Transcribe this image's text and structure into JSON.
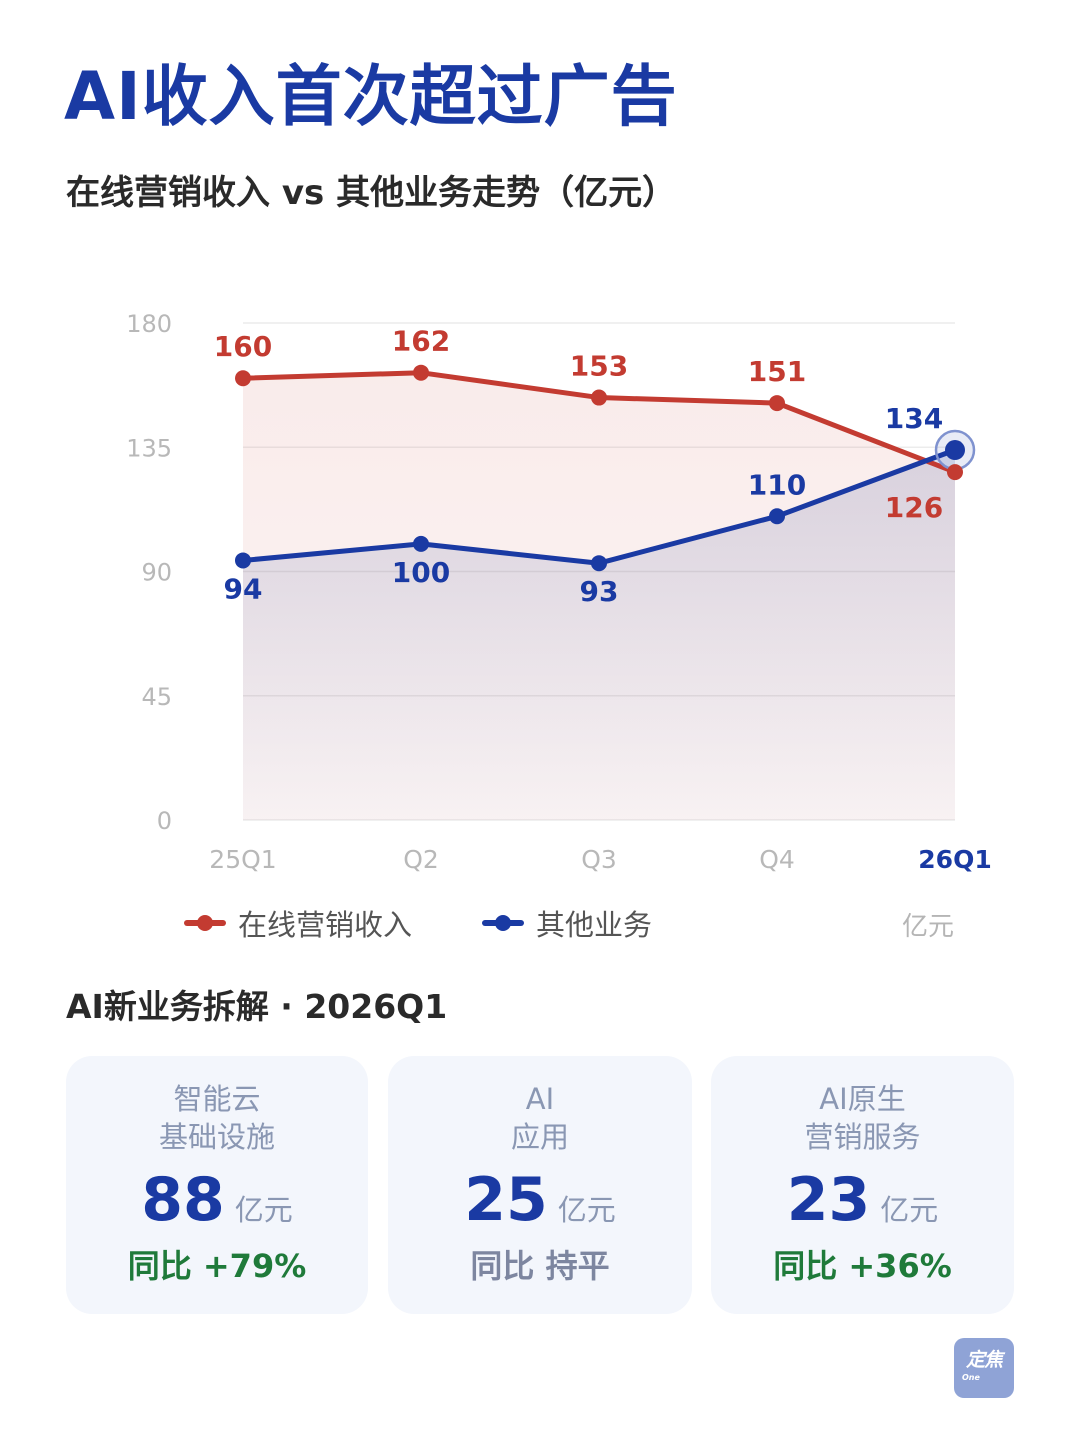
{
  "page": {
    "title": "AI收入首次超过广告",
    "subtitle": "在线营销收入 vs 其他业务走势（亿元）",
    "unit_note": "亿元",
    "section_title": "AI新业务拆解 · 2026Q1"
  },
  "chart_data": {
    "type": "line",
    "title": "在线营销收入 vs 其他业务走势（亿元）",
    "categories": [
      "25Q1",
      "Q2",
      "Q3",
      "Q4",
      "26Q1"
    ],
    "highlighted_category": "26Q1",
    "ylim": [
      0,
      180
    ],
    "yticks": [
      0,
      45,
      90,
      135,
      180
    ],
    "grid": true,
    "legend_position": "bottom-left",
    "series": [
      {
        "name": "在线营销收入",
        "color": "#c33b31",
        "values": [
          160,
          162,
          153,
          151,
          126
        ],
        "label_position": "above-except-last"
      },
      {
        "name": "其他业务",
        "color": "#1a3aa3",
        "values": [
          94,
          100,
          93,
          110,
          134
        ],
        "label_position": "below-first-three"
      }
    ]
  },
  "cards": [
    {
      "label_lines": [
        "智能云",
        "基础设施"
      ],
      "value": "88",
      "unit": "亿元",
      "yoy": "同比 +79%",
      "yoy_color": "#1f7a3a"
    },
    {
      "label_lines": [
        "AI",
        "应用"
      ],
      "value": "25",
      "unit": "亿元",
      "yoy": "同比 持平",
      "yoy_color": "#7d86a0"
    },
    {
      "label_lines": [
        "AI原生",
        "营销服务"
      ],
      "value": "23",
      "unit": "亿元",
      "yoy": "同比 +36%",
      "yoy_color": "#1f7a3a"
    }
  ],
  "logo": {
    "main": "定焦",
    "sub": "One"
  }
}
